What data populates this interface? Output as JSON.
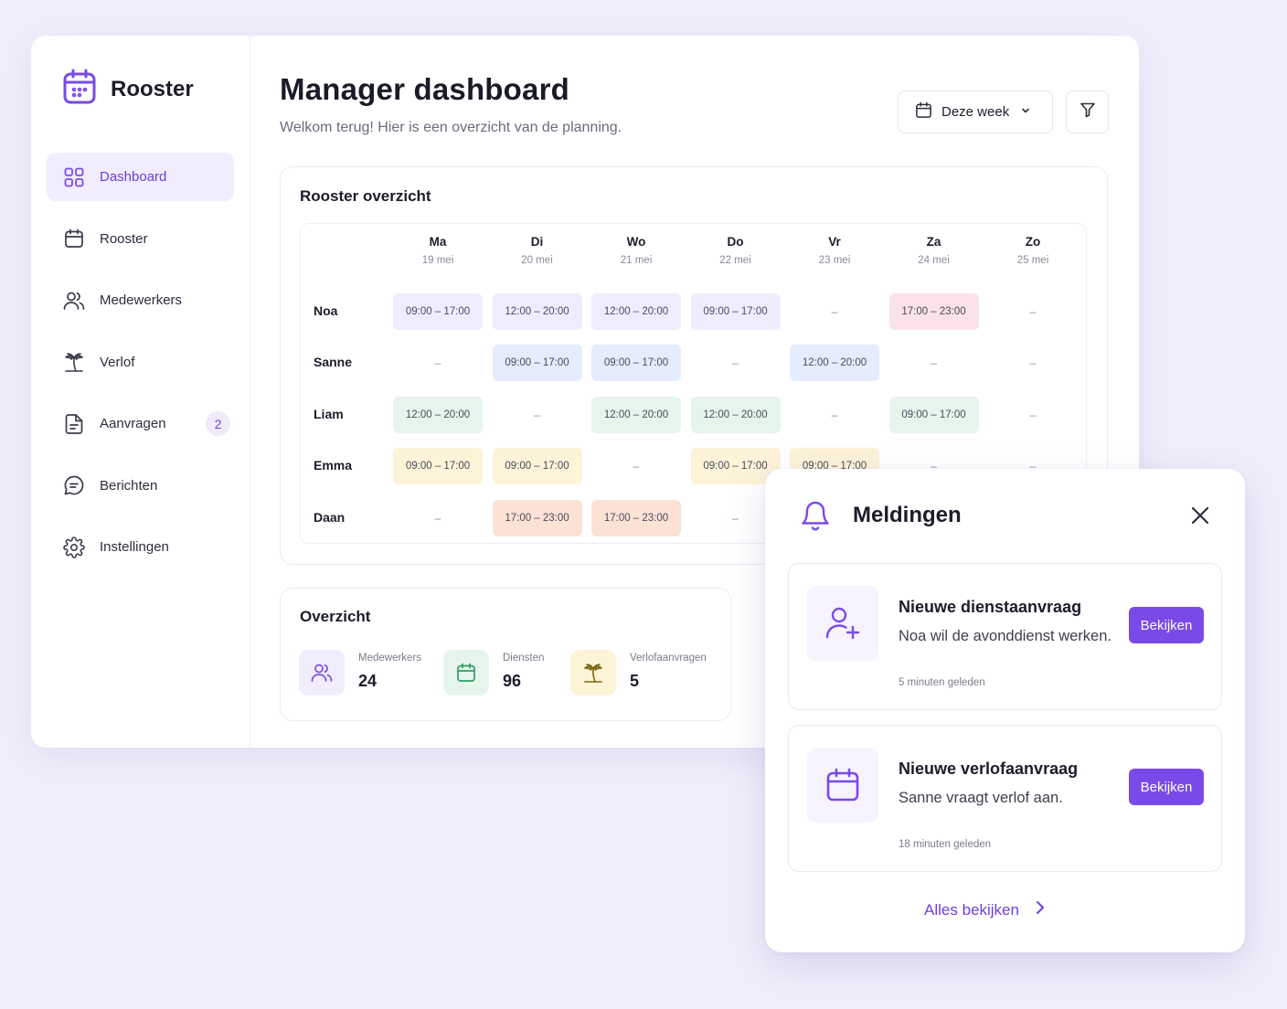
{
  "brand": {
    "title": "Rooster"
  },
  "sidebar": {
    "items": [
      {
        "label": "Dashboard",
        "icon": "grid-icon",
        "active": true
      },
      {
        "label": "Rooster",
        "icon": "calendar-icon"
      },
      {
        "label": "Medewerkers",
        "icon": "users-icon"
      },
      {
        "label": "Verlof",
        "icon": "palm-tree-icon"
      },
      {
        "label": "Aanvragen",
        "icon": "document-icon",
        "badge": "2"
      },
      {
        "label": "Berichten",
        "icon": "chat-icon"
      },
      {
        "label": "Instellingen",
        "icon": "gear-icon"
      }
    ]
  },
  "header": {
    "title": "Manager dashboard",
    "subtitle": "Welkom terug! Hier is een overzicht van de planning.",
    "week_select": "Deze week"
  },
  "schedule": {
    "title": "Rooster overzicht",
    "days": [
      {
        "day": "Ma",
        "date": "19 mei"
      },
      {
        "day": "Di",
        "date": "20 mei"
      },
      {
        "day": "Wo",
        "date": "21 mei"
      },
      {
        "day": "Do",
        "date": "22 mei"
      },
      {
        "day": "Vr",
        "date": "23 mei"
      },
      {
        "day": "Za",
        "date": "24 mei"
      },
      {
        "day": "Zo",
        "date": "25 mei"
      }
    ],
    "rows": [
      {
        "name": "Noa",
        "shifts": [
          "09:00 – 17:00",
          "12:00 – 20:00",
          "12:00 – 20:00",
          "09:00 – 17:00",
          "–",
          "17:00 – 23:00",
          "–"
        ]
      },
      {
        "name": "Sanne",
        "shifts": [
          "–",
          "09:00 – 17:00",
          "09:00 – 17:00",
          "–",
          "12:00 – 20:00",
          "–",
          "–"
        ]
      },
      {
        "name": "Liam",
        "shifts": [
          "12:00 – 20:00",
          "–",
          "12:00 – 20:00",
          "12:00 – 20:00",
          "–",
          "09:00 – 17:00",
          "–"
        ]
      },
      {
        "name": "Emma",
        "shifts": [
          "09:00 – 17:00",
          "09:00 – 17:00",
          "–",
          "09:00 – 17:00",
          "09:00 – 17:00",
          "–",
          "–"
        ]
      },
      {
        "name": "Daan",
        "shifts": [
          "–",
          "17:00 – 23:00",
          "17:00 – 23:00",
          "–",
          "",
          "",
          ""
        ]
      }
    ],
    "colors": {
      "purple": "#f1ecfd",
      "blue": "#e5ecfb",
      "green": "#e6f5ec",
      "yellow": "#fdf3d8",
      "pink": "#fbe1e8",
      "orange": "#fbe2d5"
    },
    "row_colors": [
      [
        "purple",
        "purple",
        "purple",
        "purple",
        null,
        "pink",
        null
      ],
      [
        null,
        "blue",
        "blue",
        null,
        "blue",
        null,
        null
      ],
      [
        "green",
        null,
        "green",
        "green",
        null,
        "green",
        null
      ],
      [
        "yellow",
        "yellow",
        null,
        "yellow",
        "yellow",
        null,
        null
      ],
      [
        null,
        "orange",
        "orange",
        null,
        null,
        null,
        null
      ]
    ]
  },
  "overview": {
    "title": "Overzicht",
    "stats": [
      {
        "label": "Medewerkers",
        "value": "24",
        "icon": "users-icon",
        "bg": "#f1edfd",
        "color": "#7a4ae8"
      },
      {
        "label": "Diensten",
        "value": "96",
        "icon": "calendar-icon",
        "bg": "#e6f5ec",
        "color": "#2f9e62"
      },
      {
        "label": "Verlofaanvragen",
        "value": "5",
        "icon": "palm-tree-icon",
        "bg": "#fdf4d8",
        "color": "#8a6a12"
      }
    ]
  },
  "notifications": {
    "title": "Meldingen",
    "items": [
      {
        "title": "Nieuwe dienstaanvraag",
        "desc": "Noa wil de avonddienst werken.",
        "time": "5 minuten geleden",
        "button": "Bekijken",
        "icon": "user-plus-icon"
      },
      {
        "title": "Nieuwe verlofaanvraag",
        "desc": "Sanne vraagt verlof aan.",
        "time": "18 minuten geleden",
        "button": "Bekijken",
        "icon": "calendar-icon"
      }
    ],
    "see_all": "Alles bekijken"
  },
  "accent": "#7a4ae8"
}
